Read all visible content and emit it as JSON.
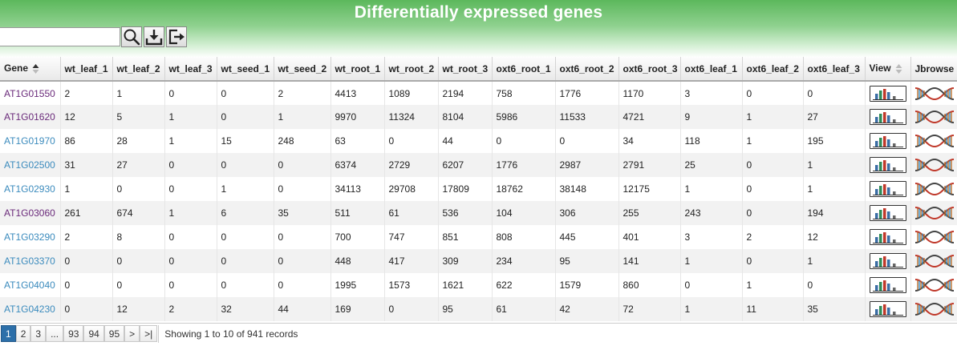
{
  "title": "Differentially expressed genes",
  "search": {
    "value": "",
    "placeholder": ""
  },
  "toolbar": {
    "icons": [
      "search-icon",
      "download-icon",
      "export-icon"
    ]
  },
  "columns": [
    "Gene",
    "wt_leaf_1",
    "wt_leaf_2",
    "wt_leaf_3",
    "wt_seed_1",
    "wt_seed_2",
    "wt_root_1",
    "wt_root_2",
    "wt_root_3",
    "oxt6_root_1",
    "oxt6_root_2",
    "oxt6_root_3",
    "oxt6_leaf_1",
    "oxt6_leaf_2",
    "oxt6_leaf_3",
    "View",
    "Jbrowse"
  ],
  "rows": [
    {
      "gene": "AT1G01550",
      "visited": true,
      "values": [
        "2",
        "1",
        "0",
        "0",
        "2",
        "4413",
        "1089",
        "2194",
        "758",
        "1776",
        "1170",
        "3",
        "0",
        "0"
      ]
    },
    {
      "gene": "AT1G01620",
      "visited": true,
      "values": [
        "12",
        "5",
        "1",
        "0",
        "1",
        "9970",
        "11324",
        "8104",
        "5986",
        "11533",
        "4721",
        "9",
        "1",
        "27"
      ]
    },
    {
      "gene": "AT1G01970",
      "visited": false,
      "values": [
        "86",
        "28",
        "1",
        "15",
        "248",
        "63",
        "0",
        "44",
        "0",
        "0",
        "34",
        "118",
        "1",
        "195"
      ]
    },
    {
      "gene": "AT1G02500",
      "visited": false,
      "values": [
        "31",
        "27",
        "0",
        "0",
        "0",
        "6374",
        "2729",
        "6207",
        "1776",
        "2987",
        "2791",
        "25",
        "0",
        "1"
      ]
    },
    {
      "gene": "AT1G02930",
      "visited": false,
      "values": [
        "1",
        "0",
        "0",
        "1",
        "0",
        "34113",
        "29708",
        "17809",
        "18762",
        "38148",
        "12175",
        "1",
        "0",
        "1"
      ]
    },
    {
      "gene": "AT1G03060",
      "visited": true,
      "values": [
        "261",
        "674",
        "1",
        "6",
        "35",
        "511",
        "61",
        "536",
        "104",
        "306",
        "255",
        "243",
        "0",
        "194"
      ]
    },
    {
      "gene": "AT1G03290",
      "visited": false,
      "values": [
        "2",
        "8",
        "0",
        "0",
        "0",
        "700",
        "747",
        "851",
        "808",
        "445",
        "401",
        "3",
        "2",
        "12"
      ]
    },
    {
      "gene": "AT1G03370",
      "visited": false,
      "values": [
        "0",
        "0",
        "0",
        "0",
        "0",
        "448",
        "417",
        "309",
        "234",
        "95",
        "141",
        "1",
        "0",
        "1"
      ]
    },
    {
      "gene": "AT1G04040",
      "visited": false,
      "values": [
        "0",
        "0",
        "0",
        "0",
        "0",
        "1995",
        "1573",
        "1621",
        "622",
        "1579",
        "860",
        "0",
        "1",
        "0"
      ]
    },
    {
      "gene": "AT1G04230",
      "visited": false,
      "values": [
        "0",
        "12",
        "2",
        "32",
        "44",
        "169",
        "0",
        "95",
        "61",
        "42",
        "72",
        "1",
        "11",
        "35"
      ]
    }
  ],
  "pagination": {
    "pages": [
      "1",
      "2",
      "3",
      "...",
      "93",
      "94",
      "95",
      ">",
      ">|"
    ],
    "active": "1",
    "records_text": "Showing 1 to 10 of 941 records"
  },
  "colors": {
    "header_green": "#5cb85c",
    "link": "#3b8bbd",
    "visited_link": "#6a2a7a",
    "active_page": "#2c6fa9"
  }
}
